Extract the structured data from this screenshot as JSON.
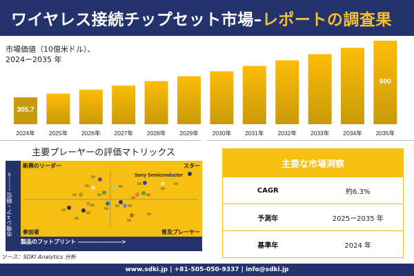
{
  "header": {
    "title_main": "ワイヤレス接続チップセット市場–",
    "title_accent": "レポートの調査果"
  },
  "chart_data": {
    "type": "bar",
    "title": "市場価値（10億米ドル）、",
    "subtitle": "2024ー2035 年",
    "categories": [
      "2024年",
      "2025年",
      "2026年",
      "2027年",
      "2028年",
      "2029年",
      "2030年",
      "2031年",
      "2032年",
      "2033年",
      "2034年",
      "2035年"
    ],
    "values": [
      305.7,
      325,
      345,
      367,
      390,
      415,
      441,
      469,
      498,
      530,
      563,
      600
    ],
    "data_labels": {
      "first": "305.7",
      "last": "600"
    },
    "colors": {
      "bar_dark": "#c99a0a",
      "bar_light": "#fdbd05"
    }
  },
  "matrix": {
    "title": "主要プレーヤーの評価マトリックス",
    "quadrants": {
      "top_left": "新興のリーダー",
      "top_right": "スター",
      "bottom_left": "参加者",
      "bottom_right": "普及プレーヤー"
    },
    "y_axis": "市場シェア・順位 ------->",
    "x_axis": "製品のフットプリント ------------------->",
    "highlight": "Sony Semiconductor",
    "points": [
      {
        "label": "xx",
        "color": "#7a3fa0"
      },
      {
        "label": "xx",
        "color": "#f3df9a"
      },
      {
        "label": "xx",
        "color": "#b8901a"
      },
      {
        "label": "xx",
        "color": "#5e9a3a"
      },
      {
        "label": "xx",
        "color": "#a8cf8a"
      },
      {
        "label": "xx",
        "color": "#2d4a8a"
      },
      {
        "label": "xx",
        "color": "#f3df9a"
      },
      {
        "label": "xx",
        "color": "#f0b81a"
      },
      {
        "label": "",
        "color": "#24336b"
      },
      {
        "label": "xx",
        "color": "#e07a3a"
      },
      {
        "label": "xx",
        "color": "#5e9a3a"
      },
      {
        "label": "xx",
        "color": "#24336b"
      },
      {
        "label": "xx",
        "color": "#e08a4a"
      },
      {
        "label": "xx",
        "color": "#1a78b8"
      },
      {
        "label": "xx",
        "color": "#f0c030"
      },
      {
        "label": "xx",
        "color": "#2a2f48"
      },
      {
        "label": "xx",
        "color": "#2d3a6a"
      },
      {
        "label": "xx",
        "color": "#888888"
      },
      {
        "label": "xx",
        "color": "#b8602a"
      },
      {
        "label": "xx",
        "color": "#f0b81a"
      }
    ]
  },
  "source": "ソース：SDKI Analytics 分析",
  "insights": {
    "title": "主要な市場洞察",
    "rows": [
      {
        "key": "CAGR",
        "value": "約6.3%"
      },
      {
        "key": "予測年",
        "value": "2025ー2035 年"
      },
      {
        "key": "基準年",
        "value": "2024 年"
      }
    ]
  },
  "footer": "www.sdki.jp | +81-505-050-9337 | info@sdki.jp"
}
